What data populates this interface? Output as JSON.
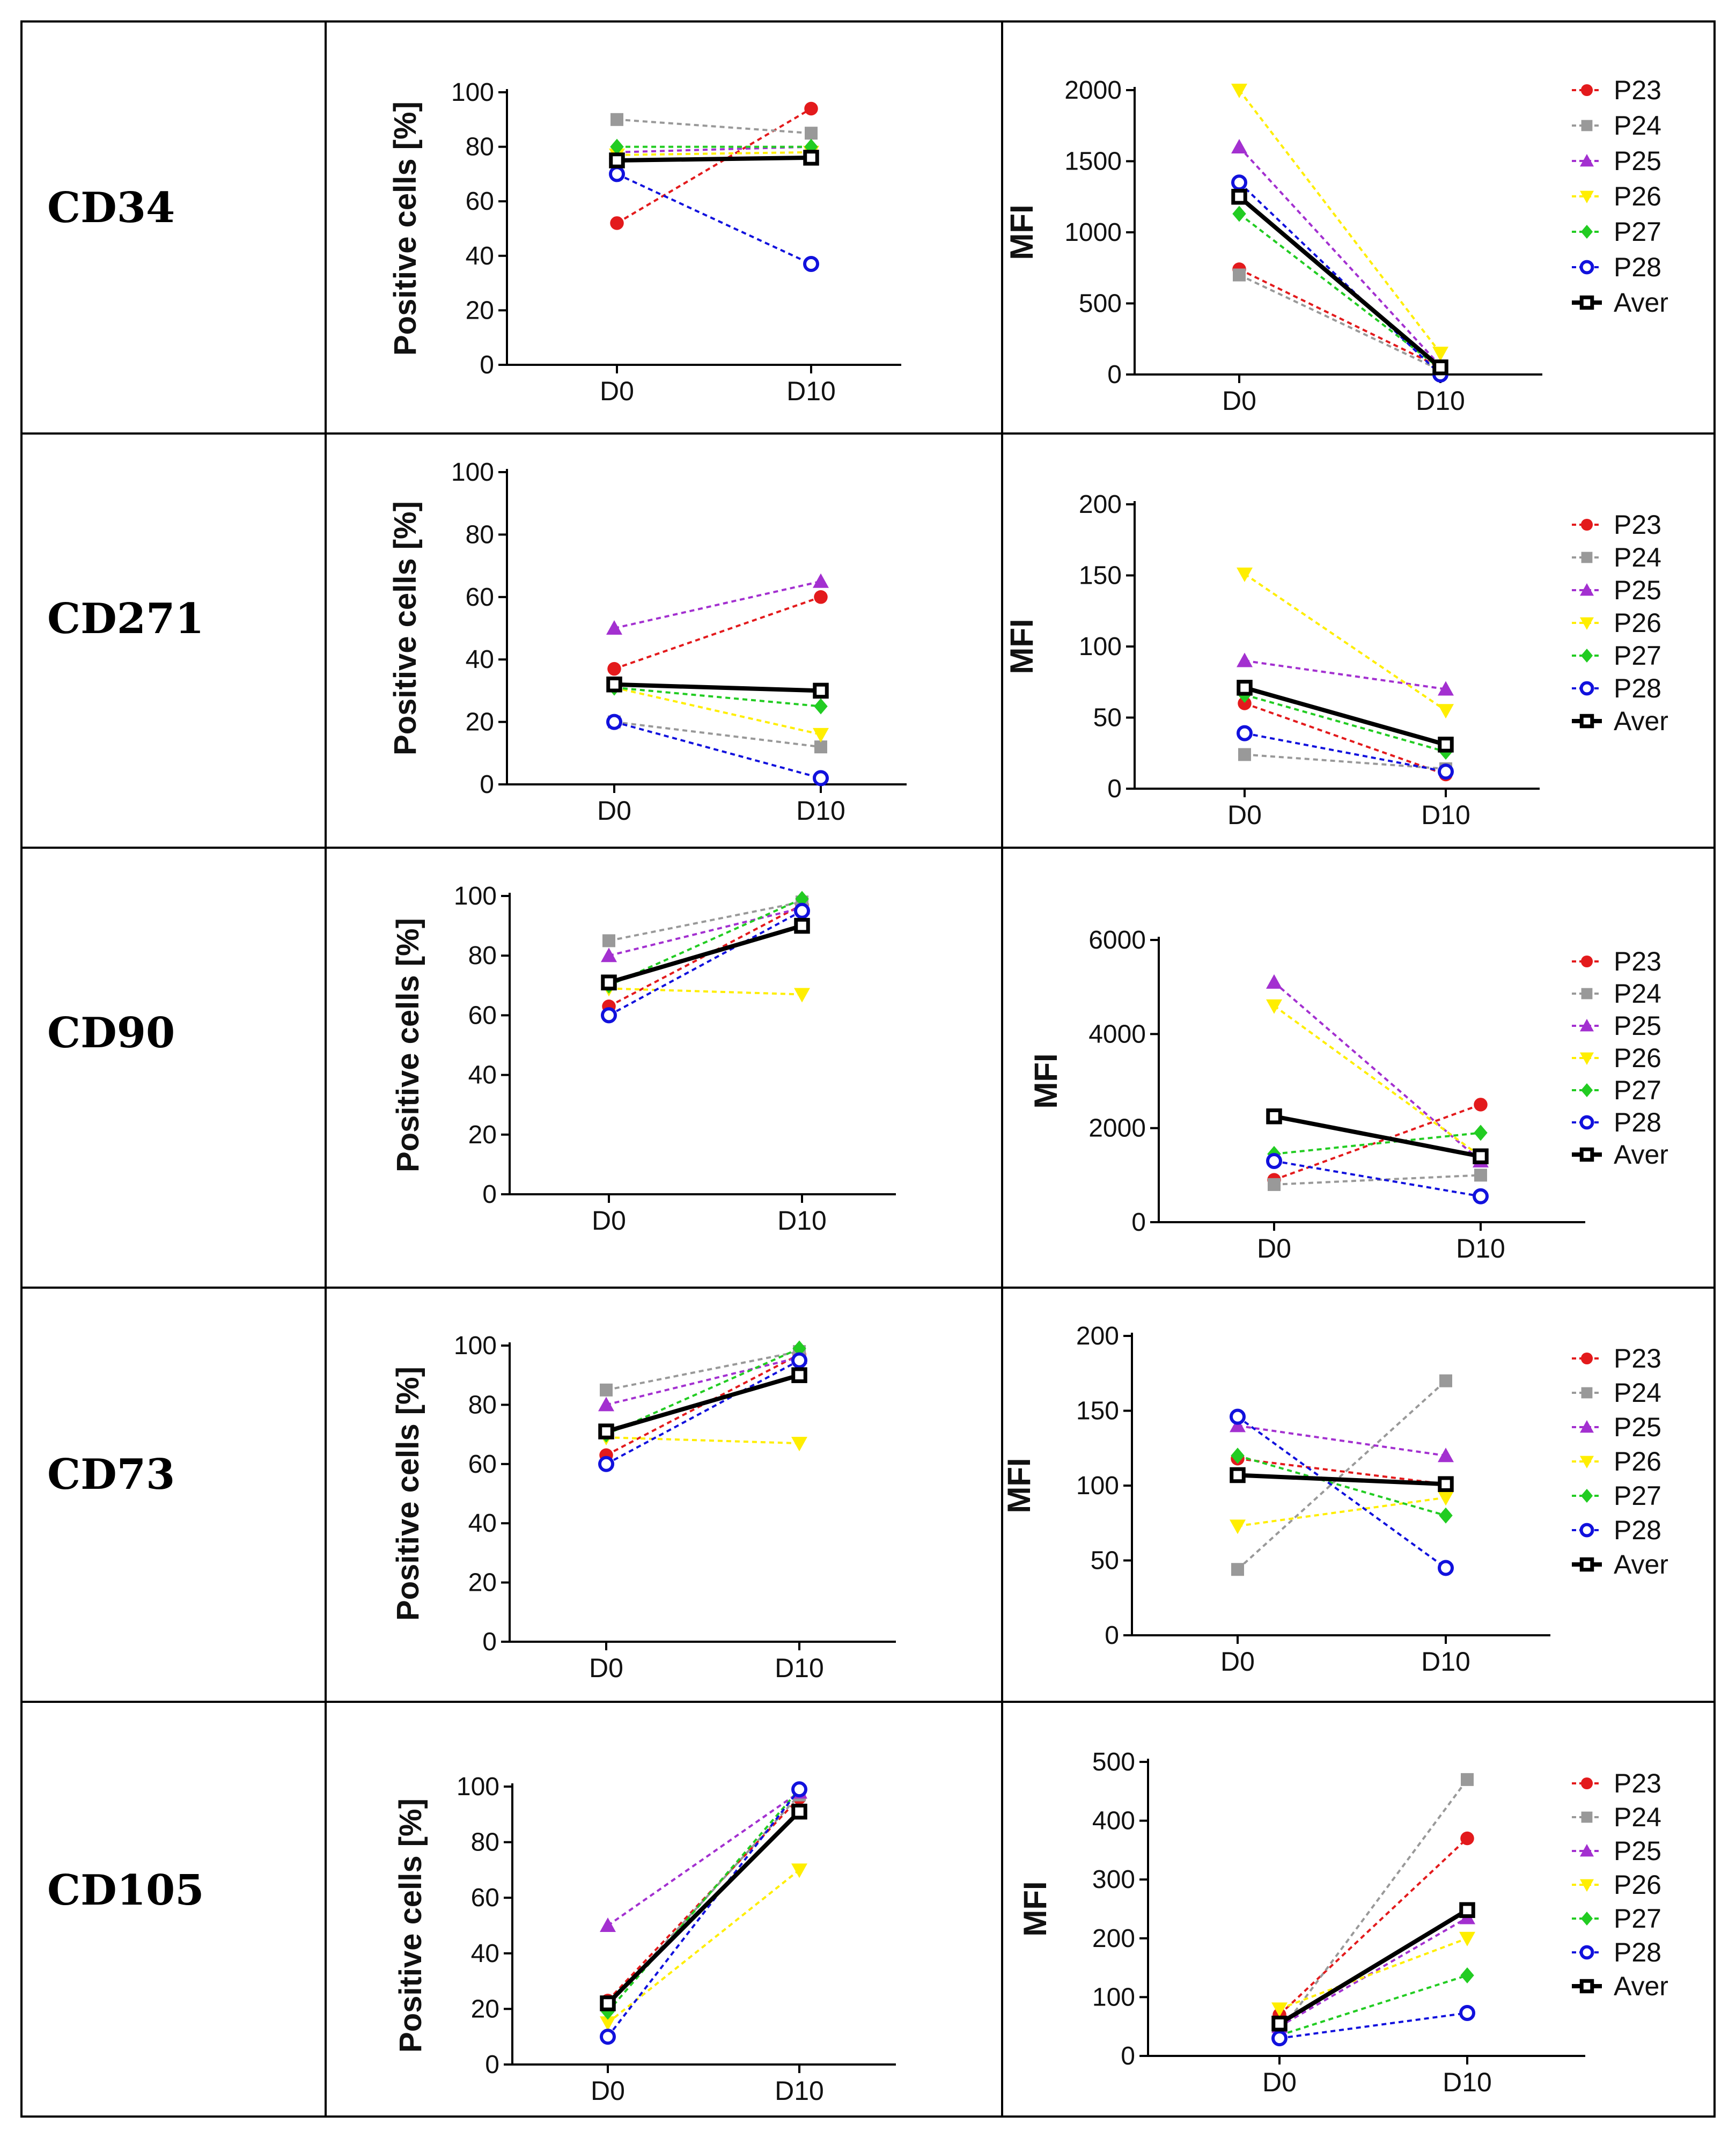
{
  "figure": {
    "markers": [
      "CD34",
      "CD271",
      "CD90",
      "CD73",
      "CD105"
    ]
  },
  "series_styles": [
    {
      "name": "P23",
      "color": "#e31a1c",
      "marker": "circle"
    },
    {
      "name": "P24",
      "color": "#999999",
      "marker": "square"
    },
    {
      "name": "P25",
      "color": "#a330d0",
      "marker": "triangle"
    },
    {
      "name": "P26",
      "color": "#ffee00",
      "marker": "triangle-down"
    },
    {
      "name": "P27",
      "color": "#22cc22",
      "marker": "diamond"
    },
    {
      "name": "P28",
      "color": "#1111dd",
      "marker": "open-circle"
    },
    {
      "name": "Aver",
      "color": "#000000",
      "marker": "open-square"
    }
  ],
  "chart_data": [
    {
      "type": "line",
      "marker": "CD34",
      "title": "CD34 positive cells",
      "ylabel": "Positive cells [%]",
      "xlabel": "",
      "categories": [
        "D0",
        "D10"
      ],
      "ylim": [
        0,
        100
      ],
      "yticks": [
        "0",
        "20",
        "40",
        "60",
        "80",
        "100"
      ],
      "series": [
        {
          "name": "P23",
          "values": [
            52,
            94
          ]
        },
        {
          "name": "P24",
          "values": [
            90,
            85
          ]
        },
        {
          "name": "P25",
          "values": [
            78,
            80
          ]
        },
        {
          "name": "P26",
          "values": [
            77,
            78
          ]
        },
        {
          "name": "P27",
          "values": [
            80,
            80
          ]
        },
        {
          "name": "P28",
          "values": [
            70,
            37
          ]
        },
        {
          "name": "Aver",
          "values": [
            75,
            76
          ]
        }
      ]
    },
    {
      "type": "line",
      "marker": "CD34",
      "title": "CD34 MFI",
      "ylabel": "MFI",
      "xlabel": "",
      "categories": [
        "D0",
        "D10"
      ],
      "ylim": [
        0,
        2000
      ],
      "yticks": [
        "0",
        "500",
        "1000",
        "1500",
        "2000"
      ],
      "legend": [
        "P23",
        "P24",
        "P25",
        "P26",
        "P27",
        "P28",
        "Aver"
      ],
      "series": [
        {
          "name": "P23",
          "values": [
            740,
            50
          ]
        },
        {
          "name": "P24",
          "values": [
            700,
            30
          ]
        },
        {
          "name": "P25",
          "values": [
            1600,
            60
          ]
        },
        {
          "name": "P26",
          "values": [
            2000,
            150
          ]
        },
        {
          "name": "P27",
          "values": [
            1130,
            40
          ]
        },
        {
          "name": "P28",
          "values": [
            1350,
            0
          ]
        },
        {
          "name": "Aver",
          "values": [
            1250,
            50
          ]
        }
      ]
    },
    {
      "type": "line",
      "marker": "CD271",
      "title": "CD271 positive cells",
      "ylabel": "Positive cells [%]",
      "xlabel": "",
      "categories": [
        "D0",
        "D10"
      ],
      "ylim": [
        0,
        100
      ],
      "yticks": [
        "0",
        "20",
        "40",
        "60",
        "80",
        "100"
      ],
      "series": [
        {
          "name": "P23",
          "values": [
            37,
            60
          ]
        },
        {
          "name": "P24",
          "values": [
            20,
            12
          ]
        },
        {
          "name": "P25",
          "values": [
            50,
            65
          ]
        },
        {
          "name": "P26",
          "values": [
            31,
            16
          ]
        },
        {
          "name": "P27",
          "values": [
            31,
            25
          ]
        },
        {
          "name": "P28",
          "values": [
            20,
            2
          ]
        },
        {
          "name": "Aver",
          "values": [
            32,
            30
          ]
        }
      ]
    },
    {
      "type": "line",
      "marker": "CD271",
      "title": "CD271 MFI",
      "ylabel": "MFI",
      "xlabel": "",
      "categories": [
        "D0",
        "D10"
      ],
      "ylim": [
        0,
        200
      ],
      "yticks": [
        "0",
        "50",
        "100",
        "150",
        "200"
      ],
      "legend": [
        "P23",
        "P24",
        "P25",
        "P26",
        "P27",
        "P28",
        "Aver"
      ],
      "series": [
        {
          "name": "P23",
          "values": [
            60,
            10
          ]
        },
        {
          "name": "P24",
          "values": [
            24,
            14
          ]
        },
        {
          "name": "P25",
          "values": [
            90,
            70
          ]
        },
        {
          "name": "P26",
          "values": [
            151,
            55
          ]
        },
        {
          "name": "P27",
          "values": [
            66,
            26
          ]
        },
        {
          "name": "P28",
          "values": [
            39,
            12
          ]
        },
        {
          "name": "Aver",
          "values": [
            71,
            31
          ]
        }
      ]
    },
    {
      "type": "line",
      "marker": "CD90",
      "title": "CD90 positive cells",
      "ylabel": "Positive cells [%]",
      "xlabel": "",
      "categories": [
        "D0",
        "D10"
      ],
      "ylim": [
        0,
        100
      ],
      "yticks": [
        "0",
        "20",
        "40",
        "60",
        "80",
        "100"
      ],
      "series": [
        {
          "name": "P23",
          "values": [
            63,
            97
          ]
        },
        {
          "name": "P24",
          "values": [
            85,
            98
          ]
        },
        {
          "name": "P25",
          "values": [
            80,
            96
          ]
        },
        {
          "name": "P26",
          "values": [
            69,
            67
          ]
        },
        {
          "name": "P27",
          "values": [
            70,
            99
          ]
        },
        {
          "name": "P28",
          "values": [
            60,
            95
          ]
        },
        {
          "name": "Aver",
          "values": [
            71,
            90
          ]
        }
      ]
    },
    {
      "type": "line",
      "marker": "CD90",
      "title": "CD90 MFI",
      "ylabel": "MFI",
      "xlabel": "",
      "categories": [
        "D0",
        "D10"
      ],
      "ylim": [
        0,
        6000
      ],
      "yticks": [
        "0",
        "2000",
        "4000",
        "6000"
      ],
      "legend": [
        "P23",
        "P24",
        "P25",
        "P26",
        "P27",
        "P28",
        "Aver"
      ],
      "series": [
        {
          "name": "P23",
          "values": [
            900,
            2500
          ]
        },
        {
          "name": "P24",
          "values": [
            800,
            1000
          ]
        },
        {
          "name": "P25",
          "values": [
            5100,
            1300
          ]
        },
        {
          "name": "P26",
          "values": [
            4600,
            1400
          ]
        },
        {
          "name": "P27",
          "values": [
            1450,
            1900
          ]
        },
        {
          "name": "P28",
          "values": [
            1300,
            550
          ]
        },
        {
          "name": "Aver",
          "values": [
            2250,
            1400
          ]
        }
      ]
    },
    {
      "type": "line",
      "marker": "CD73",
      "title": "CD73 positive cells",
      "ylabel": "Positive cells [%]",
      "xlabel": "",
      "categories": [
        "D0",
        "D10"
      ],
      "ylim": [
        0,
        100
      ],
      "yticks": [
        "0",
        "20",
        "40",
        "60",
        "80",
        "100"
      ],
      "series": [
        {
          "name": "P23",
          "values": [
            63,
            97
          ]
        },
        {
          "name": "P24",
          "values": [
            85,
            98
          ]
        },
        {
          "name": "P25",
          "values": [
            80,
            96
          ]
        },
        {
          "name": "P26",
          "values": [
            69,
            67
          ]
        },
        {
          "name": "P27",
          "values": [
            70,
            99
          ]
        },
        {
          "name": "P28",
          "values": [
            60,
            95
          ]
        },
        {
          "name": "Aver",
          "values": [
            71,
            90
          ]
        }
      ]
    },
    {
      "type": "line",
      "marker": "CD73",
      "title": "CD73 MFI",
      "ylabel": "MFI",
      "xlabel": "",
      "categories": [
        "D0",
        "D10"
      ],
      "ylim": [
        0,
        200
      ],
      "yticks": [
        "0",
        "50",
        "100",
        "150",
        "200"
      ],
      "legend": [
        "P23",
        "P24",
        "P25",
        "P26",
        "P27",
        "P28",
        "Aver"
      ],
      "series": [
        {
          "name": "P23",
          "values": [
            118,
            101
          ]
        },
        {
          "name": "P24",
          "values": [
            44,
            170
          ]
        },
        {
          "name": "P25",
          "values": [
            140,
            120
          ]
        },
        {
          "name": "P26",
          "values": [
            73,
            92
          ]
        },
        {
          "name": "P27",
          "values": [
            120,
            80
          ]
        },
        {
          "name": "P28",
          "values": [
            146,
            45
          ]
        },
        {
          "name": "Aver",
          "values": [
            107,
            101
          ]
        }
      ]
    },
    {
      "type": "line",
      "marker": "CD105",
      "title": "CD105 positive cells",
      "ylabel": "Positive cells [%]",
      "xlabel": "",
      "categories": [
        "D0",
        "D10"
      ],
      "ylim": [
        0,
        100
      ],
      "yticks": [
        "0",
        "20",
        "40",
        "60",
        "80",
        "100"
      ],
      "series": [
        {
          "name": "P23",
          "values": [
            23,
            96
          ]
        },
        {
          "name": "P24",
          "values": [
            21,
            97
          ]
        },
        {
          "name": "P25",
          "values": [
            50,
            98
          ]
        },
        {
          "name": "P26",
          "values": [
            15,
            70
          ]
        },
        {
          "name": "P27",
          "values": [
            19,
            99
          ]
        },
        {
          "name": "P28",
          "values": [
            10,
            99
          ]
        },
        {
          "name": "Aver",
          "values": [
            22,
            91
          ]
        }
      ]
    },
    {
      "type": "line",
      "marker": "CD105",
      "title": "CD105 MFI",
      "ylabel": "MFI",
      "xlabel": "",
      "categories": [
        "D0",
        "D10"
      ],
      "ylim": [
        0,
        500
      ],
      "yticks": [
        "0",
        "100",
        "200",
        "300",
        "400",
        "500"
      ],
      "legend": [
        "P23",
        "P24",
        "P25",
        "P26",
        "P27",
        "P28",
        "Aver"
      ],
      "series": [
        {
          "name": "P23",
          "values": [
            70,
            370
          ]
        },
        {
          "name": "P24",
          "values": [
            40,
            470
          ]
        },
        {
          "name": "P25",
          "values": [
            50,
            235
          ]
        },
        {
          "name": "P26",
          "values": [
            80,
            200
          ]
        },
        {
          "name": "P27",
          "values": [
            35,
            137
          ]
        },
        {
          "name": "P28",
          "values": [
            30,
            73
          ]
        },
        {
          "name": "Aver",
          "values": [
            55,
            248
          ]
        }
      ]
    }
  ]
}
